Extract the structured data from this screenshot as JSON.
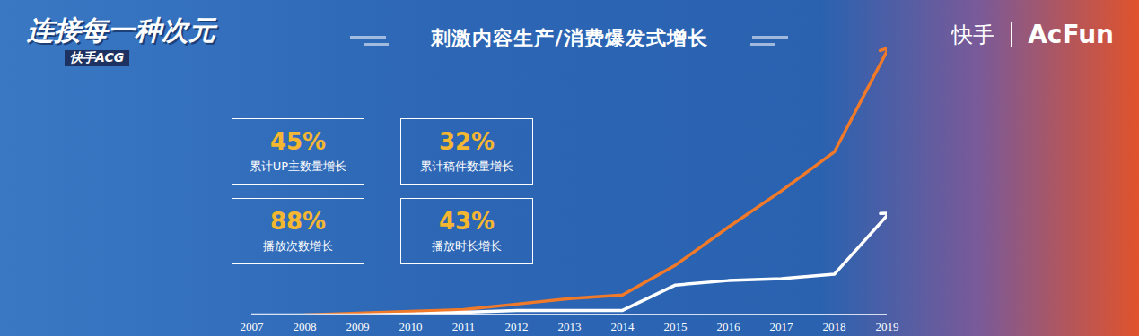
{
  "header": {
    "logo": "连接每一种次元",
    "logo_sub": "快手ACG",
    "brands": [
      "快手",
      "AcFun"
    ]
  },
  "stats": [
    {
      "value": "45%",
      "label": "累计UP主数量增长"
    },
    {
      "value": "32%",
      "label": "累计稿件数量增长"
    },
    {
      "value": "88%",
      "label": "播放次数增长"
    },
    {
      "value": "43%",
      "label": "播放时长增长"
    }
  ],
  "chart_data": {
    "type": "line",
    "title": "刺激内容生产/消费爆发式增长",
    "x": [
      2007,
      2008,
      2009,
      2010,
      2011,
      2012,
      2013,
      2014,
      2015,
      2016,
      2017,
      2018,
      2019
    ],
    "series": [
      {
        "color": "#f07a2a",
        "marker": "arrow",
        "values": [
          null,
          0,
          2,
          4,
          6,
          12,
          18,
          22,
          55,
          97,
          137,
          180,
          292
        ]
      },
      {
        "color": "#ffffff",
        "marker": "arrow",
        "values": [
          0,
          0,
          0,
          1,
          3,
          5,
          5,
          5,
          33,
          38,
          40,
          45,
          110
        ]
      }
    ],
    "xlim": [
      2007,
      2019
    ],
    "xticks": [
      2007,
      2008,
      2009,
      2010,
      2011,
      2012,
      2013,
      2014,
      2015,
      2016,
      2017,
      2018,
      2019
    ],
    "ylim": [
      0,
      300
    ],
    "tick_labels": "x",
    "grid": false
  }
}
